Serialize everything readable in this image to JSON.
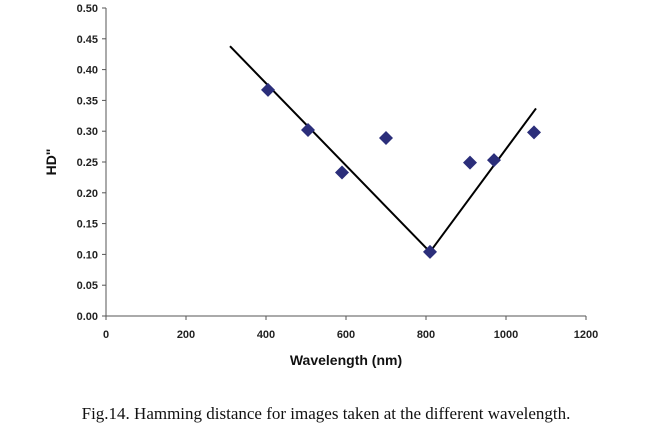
{
  "chart_data": {
    "type": "scatter",
    "xlabel": "Wavelength (nm)",
    "ylabel": "HD\"",
    "xlim": [
      0,
      1200
    ],
    "ylim": [
      0,
      0.5
    ],
    "x_ticks": [
      "0",
      "200",
      "400",
      "600",
      "800",
      "1000",
      "1200"
    ],
    "y_ticks": [
      "0.00",
      "0.05",
      "0.10",
      "0.15",
      "0.20",
      "0.25",
      "0.30",
      "0.35",
      "0.40",
      "0.45",
      "0.50"
    ],
    "points": [
      {
        "x": 405,
        "y": 0.367
      },
      {
        "x": 505,
        "y": 0.302
      },
      {
        "x": 590,
        "y": 0.233
      },
      {
        "x": 700,
        "y": 0.289
      },
      {
        "x": 810,
        "y": 0.104
      },
      {
        "x": 910,
        "y": 0.249
      },
      {
        "x": 970,
        "y": 0.253
      },
      {
        "x": 1070,
        "y": 0.298
      }
    ],
    "fit_lines": [
      {
        "x": [
          310,
          810
        ],
        "y": [
          0.438,
          0.104
        ]
      },
      {
        "x": [
          810,
          1075
        ],
        "y": [
          0.104,
          0.337
        ]
      }
    ],
    "marker_color": "#2b2e7a",
    "line_color": "#000000",
    "caption": "Fig.14. Hamming distance for images taken at the different wavelength."
  }
}
